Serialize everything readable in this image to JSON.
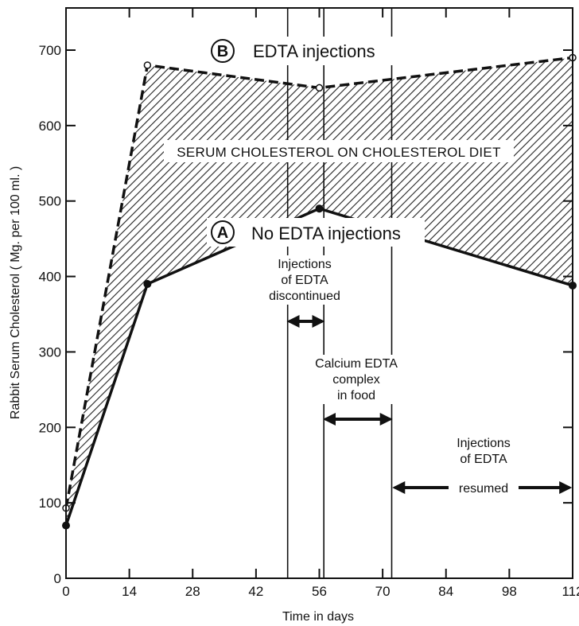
{
  "chart_data": {
    "type": "line",
    "xlabel": "Time in days",
    "ylabel": "Rabbit Serum Cholesterol ( Mg. per 100 ml. )",
    "xlim": [
      0,
      112
    ],
    "ylim": [
      0,
      700
    ],
    "xticks": [
      0,
      14,
      28,
      42,
      56,
      70,
      84,
      98,
      112
    ],
    "yticks": [
      0,
      100,
      200,
      300,
      400,
      500,
      600,
      700
    ],
    "grid": false,
    "band_label": "SERUM CHOLESTEROL ON CHOLESTEROL DIET",
    "series": [
      {
        "name": "EDTA injections",
        "marker_label": "B",
        "style": "dashed",
        "marker": "open-circle",
        "x": [
          0,
          18,
          56,
          112
        ],
        "y": [
          93,
          680,
          650,
          690
        ]
      },
      {
        "name": "No EDTA injections",
        "marker_label": "A",
        "style": "solid",
        "marker": "filled-circle",
        "x": [
          0,
          18,
          56,
          112
        ],
        "y": [
          70,
          390,
          490,
          388
        ]
      }
    ],
    "vlines": [
      49,
      57,
      72
    ],
    "annotations": [
      {
        "lines": [
          "Injections",
          "of EDTA",
          "discontinued"
        ],
        "from": 49,
        "to": 57
      },
      {
        "lines": [
          "Calcium EDTA",
          "complex",
          "in food"
        ],
        "from": 57,
        "to": 72
      },
      {
        "lines": [
          "Injections",
          "of EDTA",
          "resumed"
        ],
        "from": 72,
        "to": 112
      }
    ]
  }
}
